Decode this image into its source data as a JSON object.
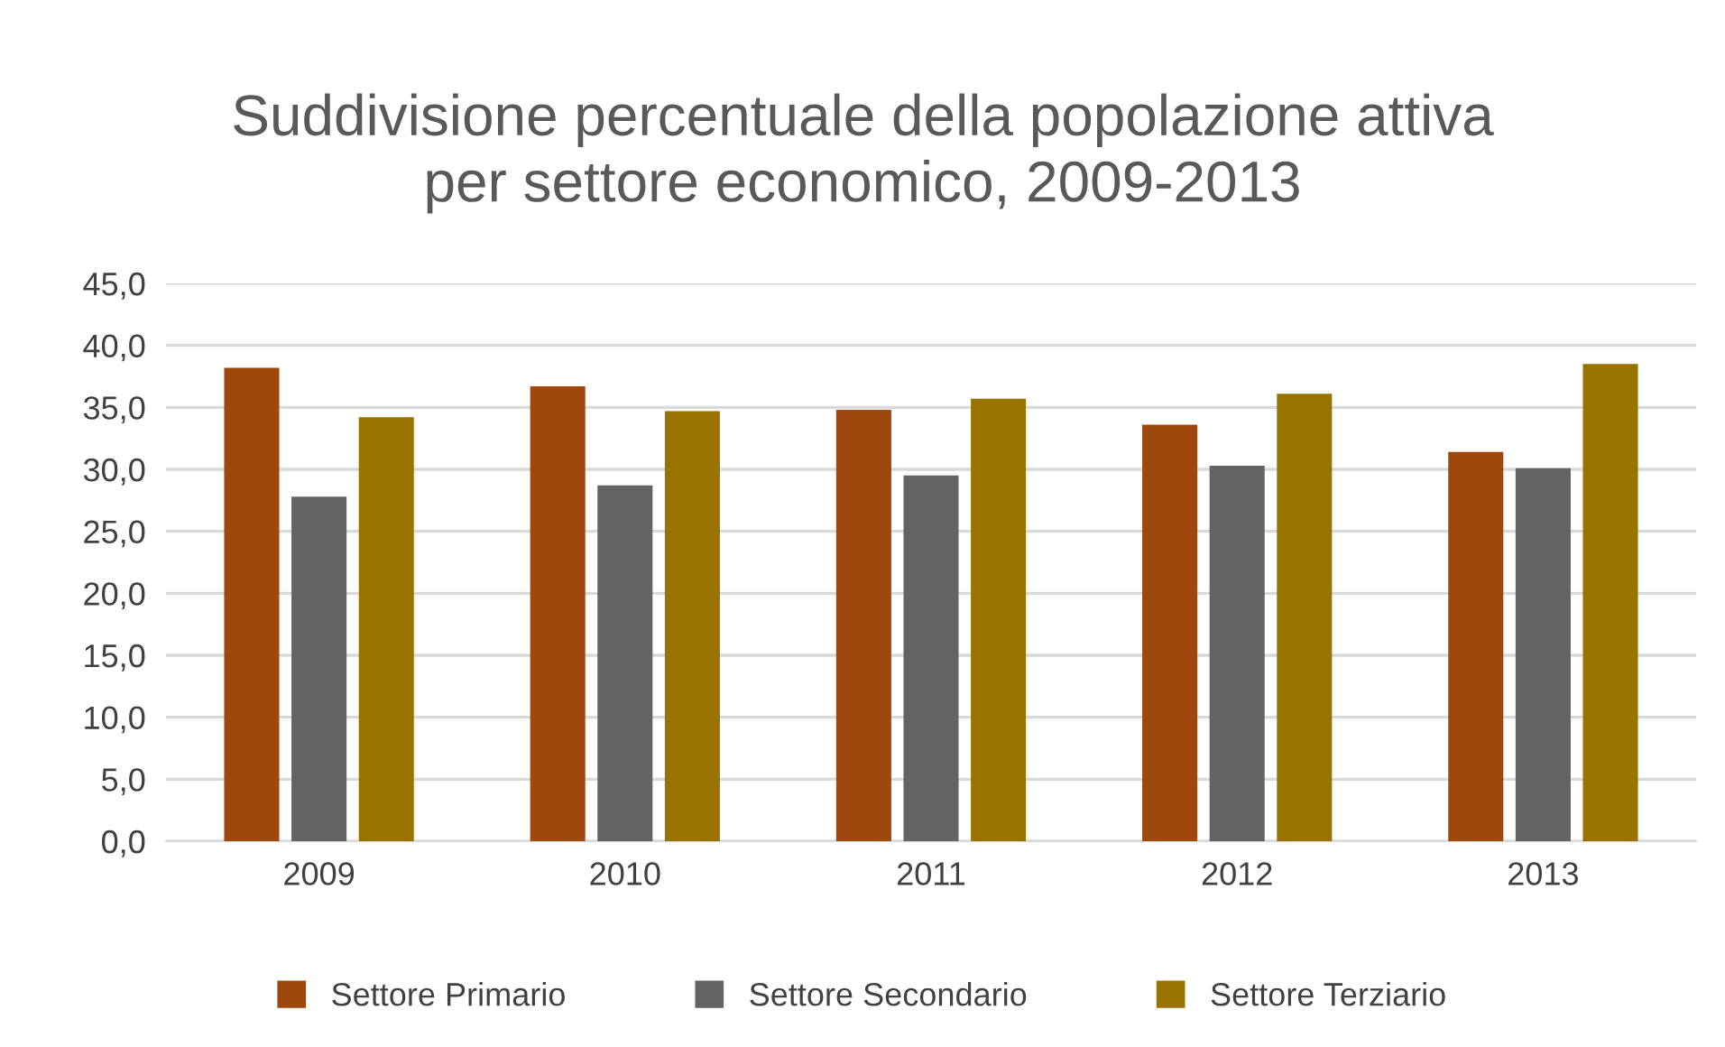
{
  "chart_data": {
    "type": "bar",
    "title": "Suddivisione percentuale della popolazione attiva\nper settore economico, 2009-2013",
    "categories": [
      "2009",
      "2010",
      "2011",
      "2012",
      "2013"
    ],
    "series": [
      {
        "name": "Settore Primario",
        "color": "#9e480e",
        "values": [
          38.2,
          36.7,
          34.8,
          33.6,
          31.4
        ]
      },
      {
        "name": "Settore Secondario",
        "color": "#636363",
        "values": [
          27.8,
          28.7,
          29.5,
          30.3,
          30.1
        ]
      },
      {
        "name": "Settore Terziario",
        "color": "#997300",
        "values": [
          34.2,
          34.7,
          35.7,
          36.1,
          38.5
        ]
      }
    ],
    "ylim": [
      0,
      45
    ],
    "yticks": [
      {
        "value": 0,
        "label": "0,0"
      },
      {
        "value": 5,
        "label": "5,0"
      },
      {
        "value": 10,
        "label": "10,0"
      },
      {
        "value": 15,
        "label": "15,0"
      },
      {
        "value": 20,
        "label": "20,0"
      },
      {
        "value": 25,
        "label": "25,0"
      },
      {
        "value": 30,
        "label": "30,0"
      },
      {
        "value": 35,
        "label": "35,0"
      },
      {
        "value": 40,
        "label": "40,0"
      },
      {
        "value": 45,
        "label": "45,0"
      }
    ],
    "grid": "y",
    "legend": "bottom"
  }
}
